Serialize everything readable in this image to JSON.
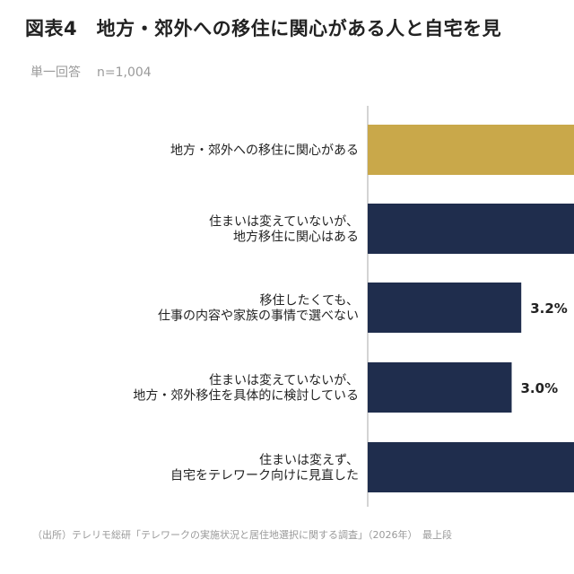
{
  "title": "図表4　地方・郊外への移住に関心がある人と自宅を見",
  "subtitle": {
    "answer_type": "単一回答",
    "sample": "n=1,004"
  },
  "source": "（出所）テレリモ総研「テレワークの実施状況と居住地選択に関する調査」（2026年）　最上段",
  "colors": {
    "highlight": "#c9a84a",
    "bar": "#1f2d4d",
    "axis": "#aaaaaa"
  },
  "chart_data": {
    "type": "bar",
    "orientation": "horizontal",
    "categories": [
      [
        "地方・郊外への移住に関心がある"
      ],
      [
        "住まいは変えていないが、",
        "地方移住に関心はある"
      ],
      [
        "移住したくても、",
        "仕事の内容や家族の事情で選べない"
      ],
      [
        "住まいは変えていないが、",
        "地方・郊外移住を具体的に検討している"
      ],
      [
        "住まいは変えず、",
        "自宅をテレワーク向けに見直した"
      ]
    ],
    "values": [
      null,
      null,
      3.2,
      3.0,
      null
    ],
    "value_labels": [
      "",
      "",
      "3.2%",
      "3.0%",
      ""
    ],
    "highlight_index": 0,
    "unit": "%"
  }
}
